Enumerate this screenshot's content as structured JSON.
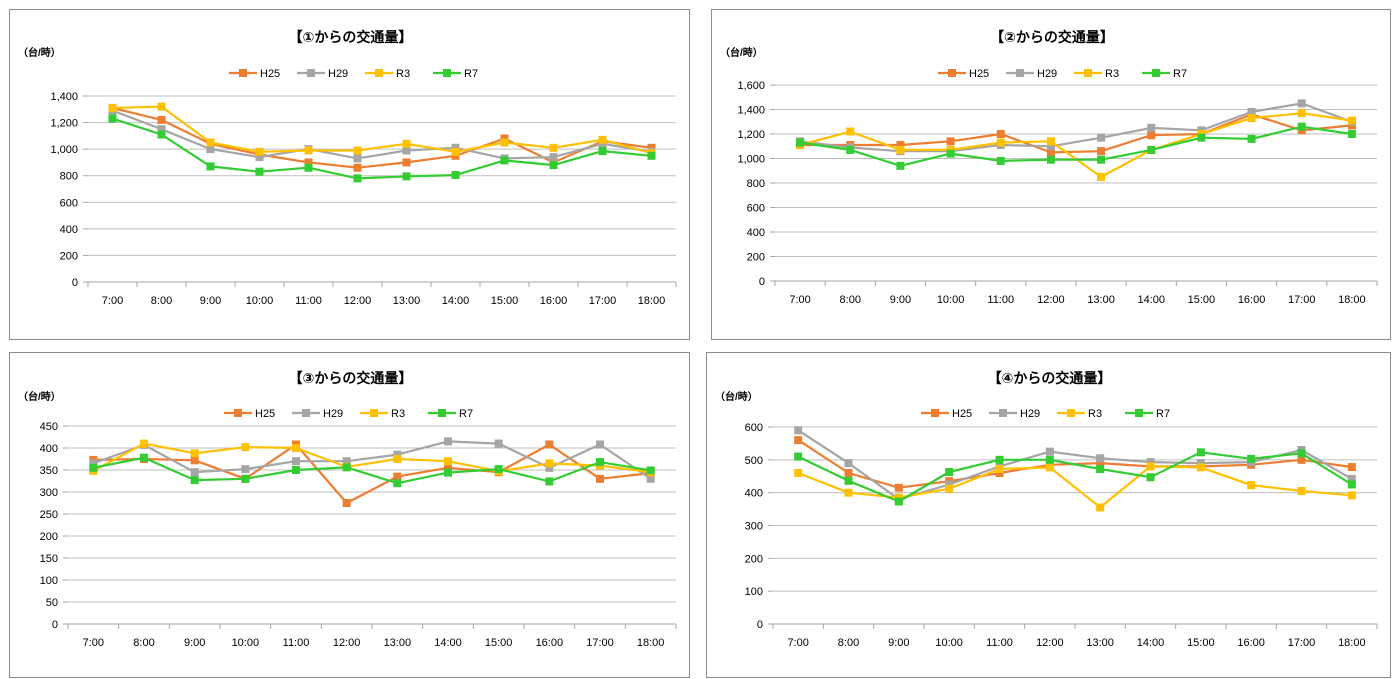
{
  "series_style": [
    {
      "name": "H25",
      "color": "#ED7D31"
    },
    {
      "name": "H29",
      "color": "#A5A5A5"
    },
    {
      "name": "R3",
      "color": "#FFC000"
    },
    {
      "name": "R7",
      "color": "#33CC33"
    }
  ],
  "chart_data": [
    {
      "type": "line",
      "title": "【①からの交通量】",
      "ylabel": "（台/時）",
      "categories": [
        "7:00",
        "8:00",
        "9:00",
        "10:00",
        "11:00",
        "12:00",
        "13:00",
        "14:00",
        "15:00",
        "16:00",
        "17:00",
        "18:00"
      ],
      "ylim": [
        0,
        1400
      ],
      "ystep": 200,
      "yticks": [
        "0",
        "200",
        "400",
        "600",
        "800",
        "1,000",
        "1,200",
        "1,400"
      ],
      "legend": "top",
      "grid": true,
      "series": [
        {
          "name": "H25",
          "values": [
            1310,
            1220,
            1040,
            960,
            900,
            860,
            900,
            950,
            1080,
            900,
            1060,
            1010
          ]
        },
        {
          "name": "H29",
          "values": [
            1290,
            1150,
            1000,
            940,
            1000,
            930,
            990,
            1010,
            930,
            940,
            1040,
            980
          ]
        },
        {
          "name": "R3",
          "values": [
            1310,
            1320,
            1050,
            980,
            990,
            990,
            1040,
            980,
            1050,
            1010,
            1070,
            970
          ]
        },
        {
          "name": "R7",
          "values": [
            1230,
            1110,
            870,
            830,
            860,
            780,
            795,
            805,
            915,
            880,
            985,
            950
          ]
        }
      ]
    },
    {
      "type": "line",
      "title": "【②からの交通量】",
      "ylabel": "（台/時）",
      "categories": [
        "7:00",
        "8:00",
        "9:00",
        "10:00",
        "11:00",
        "12:00",
        "13:00",
        "14:00",
        "15:00",
        "16:00",
        "17:00",
        "18:00"
      ],
      "ylim": [
        0,
        1600
      ],
      "ystep": 200,
      "yticks": [
        "0",
        "200",
        "400",
        "600",
        "800",
        "1,000",
        "1,200",
        "1,400",
        "1,600"
      ],
      "legend": "top",
      "grid": true,
      "series": [
        {
          "name": "H25",
          "values": [
            1110,
            1110,
            1110,
            1140,
            1200,
            1050,
            1060,
            1190,
            1200,
            1360,
            1230,
            1270
          ]
        },
        {
          "name": "H29",
          "values": [
            1140,
            1090,
            1060,
            1060,
            1110,
            1100,
            1170,
            1250,
            1230,
            1380,
            1450,
            1300
          ]
        },
        {
          "name": "R3",
          "values": [
            1110,
            1220,
            1070,
            1070,
            1130,
            1140,
            850,
            1070,
            1200,
            1330,
            1370,
            1310
          ]
        },
        {
          "name": "R7",
          "values": [
            1130,
            1070,
            940,
            1040,
            980,
            990,
            990,
            1070,
            1170,
            1160,
            1260,
            1200
          ]
        }
      ]
    },
    {
      "type": "line",
      "title": "【③からの交通量】",
      "ylabel": "（台/時）",
      "categories": [
        "7:00",
        "8:00",
        "9:00",
        "10:00",
        "11:00",
        "12:00",
        "13:00",
        "14:00",
        "15:00",
        "16:00",
        "17:00",
        "18:00"
      ],
      "ylim": [
        0,
        450
      ],
      "ystep": 50,
      "yticks": [
        "0",
        "50",
        "100",
        "150",
        "200",
        "250",
        "300",
        "350",
        "400",
        "450"
      ],
      "legend": "top",
      "grid": true,
      "series": [
        {
          "name": "H25",
          "values": [
            373,
            375,
            372,
            330,
            408,
            275,
            335,
            355,
            345,
            408,
            330,
            343
          ]
        },
        {
          "name": "H29",
          "values": [
            365,
            407,
            345,
            352,
            370,
            370,
            385,
            415,
            410,
            355,
            408,
            330
          ]
        },
        {
          "name": "R3",
          "values": [
            348,
            410,
            388,
            402,
            400,
            357,
            375,
            370,
            347,
            365,
            360,
            345
          ]
        },
        {
          "name": "R7",
          "values": [
            355,
            378,
            327,
            330,
            350,
            356,
            320,
            344,
            352,
            324,
            368,
            349
          ]
        }
      ]
    },
    {
      "type": "line",
      "title": "【④からの交通量】",
      "ylabel": "（台/時）",
      "categories": [
        "7:00",
        "8:00",
        "9:00",
        "10:00",
        "11:00",
        "12:00",
        "13:00",
        "14:00",
        "15:00",
        "16:00",
        "17:00",
        "18:00"
      ],
      "ylim": [
        0,
        600
      ],
      "ystep": 100,
      "yticks": [
        "0",
        "100",
        "200",
        "300",
        "400",
        "500",
        "600"
      ],
      "legend": "top",
      "grid": true,
      "series": [
        {
          "name": "H25",
          "values": [
            560,
            460,
            415,
            435,
            460,
            485,
            490,
            480,
            480,
            485,
            500,
            478
          ]
        },
        {
          "name": "H29",
          "values": [
            590,
            490,
            380,
            425,
            480,
            525,
            505,
            493,
            490,
            493,
            530,
            442
          ]
        },
        {
          "name": "R3",
          "values": [
            460,
            400,
            385,
            412,
            472,
            477,
            355,
            480,
            477,
            423,
            405,
            392
          ]
        },
        {
          "name": "R7",
          "values": [
            510,
            436,
            373,
            463,
            500,
            500,
            472,
            447,
            523,
            503,
            520,
            425
          ]
        }
      ]
    }
  ]
}
